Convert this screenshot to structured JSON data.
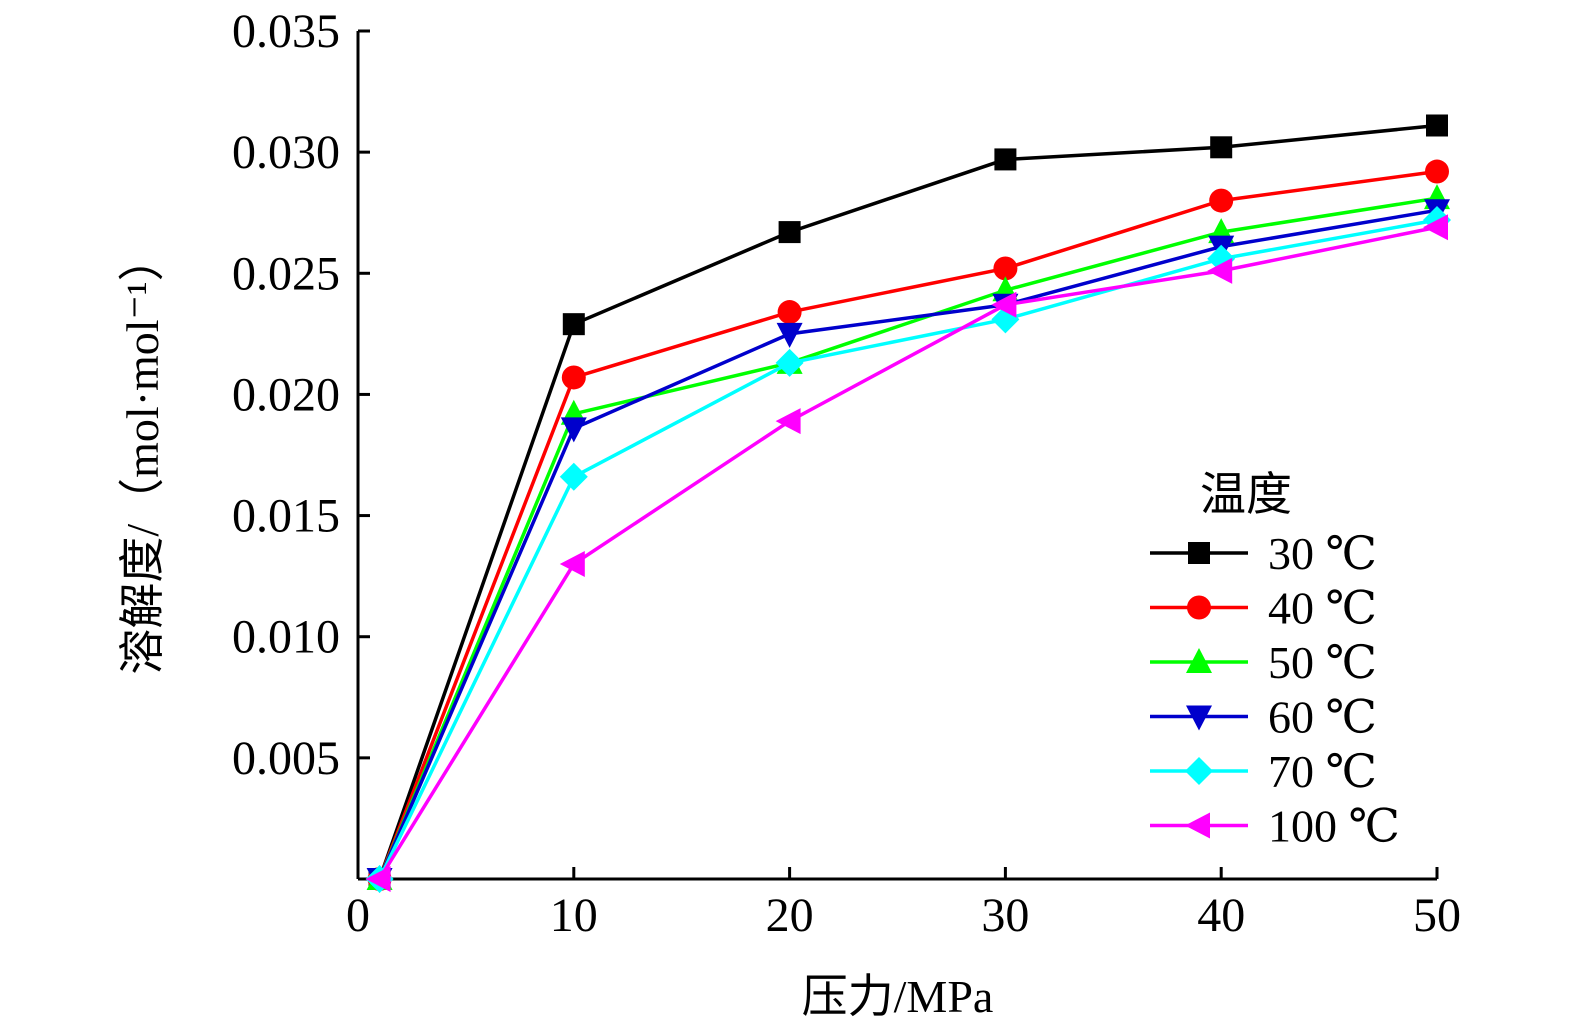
{
  "chart_data": {
    "type": "line",
    "title": "",
    "xlabel": "压力/MPa",
    "ylabel": "溶解度/（mol·mol⁻¹）",
    "x": [
      1,
      10,
      20,
      30,
      40,
      50
    ],
    "xlim": [
      0,
      50
    ],
    "ylim": [
      0,
      0.035
    ],
    "xticks": [
      "0",
      "10",
      "20",
      "30",
      "40",
      "50"
    ],
    "yticks": [
      "0.005",
      "0.010",
      "0.015",
      "0.020",
      "0.025",
      "0.030",
      "0.035"
    ],
    "grid": false,
    "legend": {
      "title": "温度",
      "position": "bottom-right"
    },
    "series": [
      {
        "name": "30 ℃",
        "color": "#000000",
        "marker": "square",
        "values": [
          0.0,
          0.0229,
          0.0267,
          0.0297,
          0.0302,
          0.0311
        ]
      },
      {
        "name": "40 ℃",
        "color": "#ff0000",
        "marker": "circle",
        "values": [
          0.0,
          0.0207,
          0.0234,
          0.0252,
          0.028,
          0.0292
        ]
      },
      {
        "name": "50 ℃",
        "color": "#00ff00",
        "marker": "triangle-up",
        "values": [
          0.0,
          0.0192,
          0.0213,
          0.0243,
          0.0267,
          0.0281
        ]
      },
      {
        "name": "60 ℃",
        "color": "#0000cc",
        "marker": "triangle-down",
        "values": [
          0.0,
          0.0186,
          0.0225,
          0.0237,
          0.0261,
          0.0276
        ]
      },
      {
        "name": "70 ℃",
        "color": "#00ffff",
        "marker": "diamond",
        "values": [
          0.0,
          0.0166,
          0.0213,
          0.0231,
          0.0256,
          0.0272
        ]
      },
      {
        "name": "100 ℃",
        "color": "#ff00ff",
        "marker": "triangle-left",
        "values": [
          0.0,
          0.013,
          0.0189,
          0.0237,
          0.0251,
          0.0269
        ]
      }
    ]
  }
}
